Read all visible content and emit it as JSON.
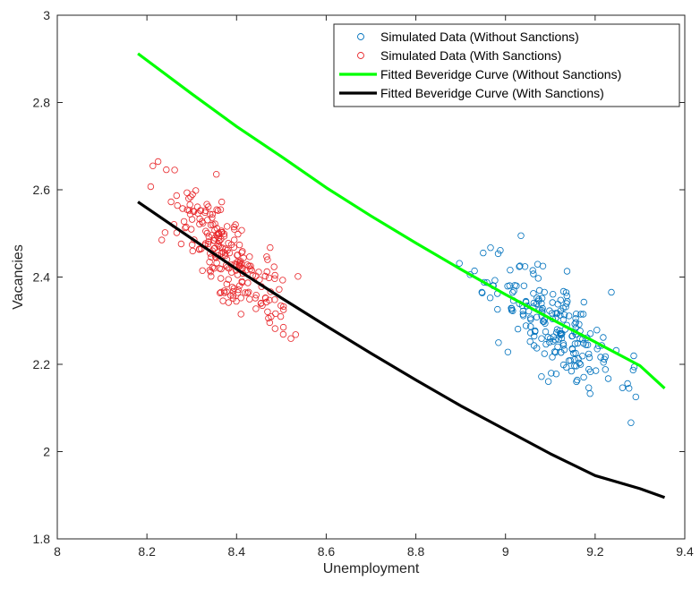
{
  "chart_data": {
    "type": "scatter",
    "xlabel": "Unemployment",
    "ylabel": "Vacancies",
    "xlim": [
      8,
      9.4
    ],
    "ylim": [
      1.8,
      3
    ],
    "xticks": [
      "8",
      "8.2",
      "8.4",
      "8.6",
      "8.8",
      "9",
      "9.2",
      "9.4"
    ],
    "yticks": [
      "1.8",
      "2",
      "2.2",
      "2.4",
      "2.6",
      "2.8",
      "3"
    ],
    "grid": false,
    "legend_position": "top-right",
    "series": [
      {
        "name": "Simulated Data (Without Sanctions)",
        "kind": "scatter",
        "color": "#0072BD",
        "marker": "circle-open",
        "cluster": {
          "count": 210,
          "x_range": [
            8.86,
            9.36
          ],
          "slope": -0.65,
          "anchor": [
            9.1,
            2.29
          ],
          "spread": 0.07,
          "seed": 7
        }
      },
      {
        "name": "Simulated Data (With Sanctions)",
        "kind": "scatter",
        "color": "#D95319",
        "marker": "circle-open",
        "stroke": "#E8272B",
        "cluster": {
          "count": 230,
          "x_range": [
            8.18,
            8.57
          ],
          "slope": -0.95,
          "anchor": [
            8.4,
            2.43
          ],
          "spread": 0.065,
          "seed": 13
        }
      },
      {
        "name": "Fitted Beveridge Curve (Without Sanctions)",
        "kind": "line",
        "color": "#00FF00",
        "x": [
          8.18,
          8.3,
          8.4,
          8.5,
          8.6,
          8.7,
          8.8,
          8.9,
          9.0,
          9.1,
          9.2,
          9.3,
          9.355
        ],
        "y": [
          2.912,
          2.82,
          2.745,
          2.676,
          2.605,
          2.54,
          2.478,
          2.418,
          2.36,
          2.305,
          2.251,
          2.197,
          2.145
        ]
      },
      {
        "name": "Fitted Beveridge Curve (With Sanctions)",
        "kind": "line",
        "color": "#000000",
        "x": [
          8.18,
          8.3,
          8.4,
          8.5,
          8.6,
          8.7,
          8.8,
          8.9,
          9.0,
          9.1,
          9.2,
          9.3,
          9.355
        ],
        "y": [
          2.572,
          2.488,
          2.418,
          2.352,
          2.288,
          2.225,
          2.164,
          2.105,
          2.05,
          1.995,
          1.945,
          1.915,
          1.895
        ]
      }
    ]
  }
}
